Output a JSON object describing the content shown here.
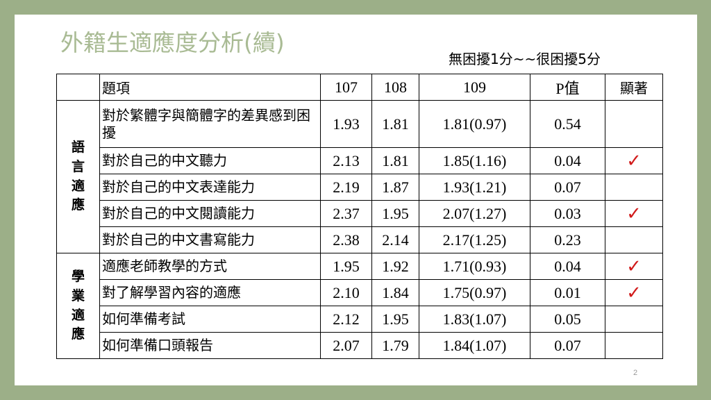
{
  "slide": {
    "title": "外籍生適應度分析(續)",
    "subtitle": "無困擾1分~~很困擾5分",
    "page_number": "2"
  },
  "table": {
    "headers": [
      "",
      "題項",
      "107",
      "108",
      "109",
      "P值",
      "顯著"
    ],
    "categories": [
      {
        "label": "語言適應"
      },
      {
        "label": "學業適應"
      }
    ],
    "rows": [
      {
        "item": "對於繁體字與簡體字的差異感到困擾",
        "y107": "1.93",
        "y108": "1.81",
        "y109": "1.81(0.97)",
        "p": "0.54",
        "sig": ""
      },
      {
        "item": "對於自己的中文聽力",
        "y107": "2.13",
        "y108": "1.81",
        "y109": "1.85(1.16)",
        "p": "0.04",
        "sig": "✓"
      },
      {
        "item": "對於自己的中文表達能力",
        "y107": "2.19",
        "y108": "1.87",
        "y109": "1.93(1.21)",
        "p": "0.07",
        "sig": ""
      },
      {
        "item": "對於自己的中文閱讀能力",
        "y107": "2.37",
        "y108": "1.95",
        "y109": "2.07(1.27)",
        "p": "0.03",
        "sig": "✓"
      },
      {
        "item": "對於自己的中文書寫能力",
        "y107": "2.38",
        "y108": "2.14",
        "y109": "2.17(1.25)",
        "p": "0.23",
        "sig": ""
      },
      {
        "item": "適應老師教學的方式",
        "y107": "1.95",
        "y108": "1.92",
        "y109": "1.71(0.93)",
        "p": "0.04",
        "sig": "✓"
      },
      {
        "item": "對了解學習內容的適應",
        "y107": "2.10",
        "y108": "1.84",
        "y109": "1.75(0.97)",
        "p": "0.01",
        "sig": "✓"
      },
      {
        "item": "如何準備考試",
        "y107": "2.12",
        "y108": "1.95",
        "y109": "1.83(1.07)",
        "p": "0.05",
        "sig": ""
      },
      {
        "item": "如何準備口頭報告",
        "y107": "2.07",
        "y108": "1.79",
        "y109": "1.84(1.07)",
        "p": "0.07",
        "sig": ""
      }
    ]
  },
  "colors": {
    "frame": "#9caf88",
    "title": "#a9bb94",
    "checkmark": "#d11a1a"
  }
}
